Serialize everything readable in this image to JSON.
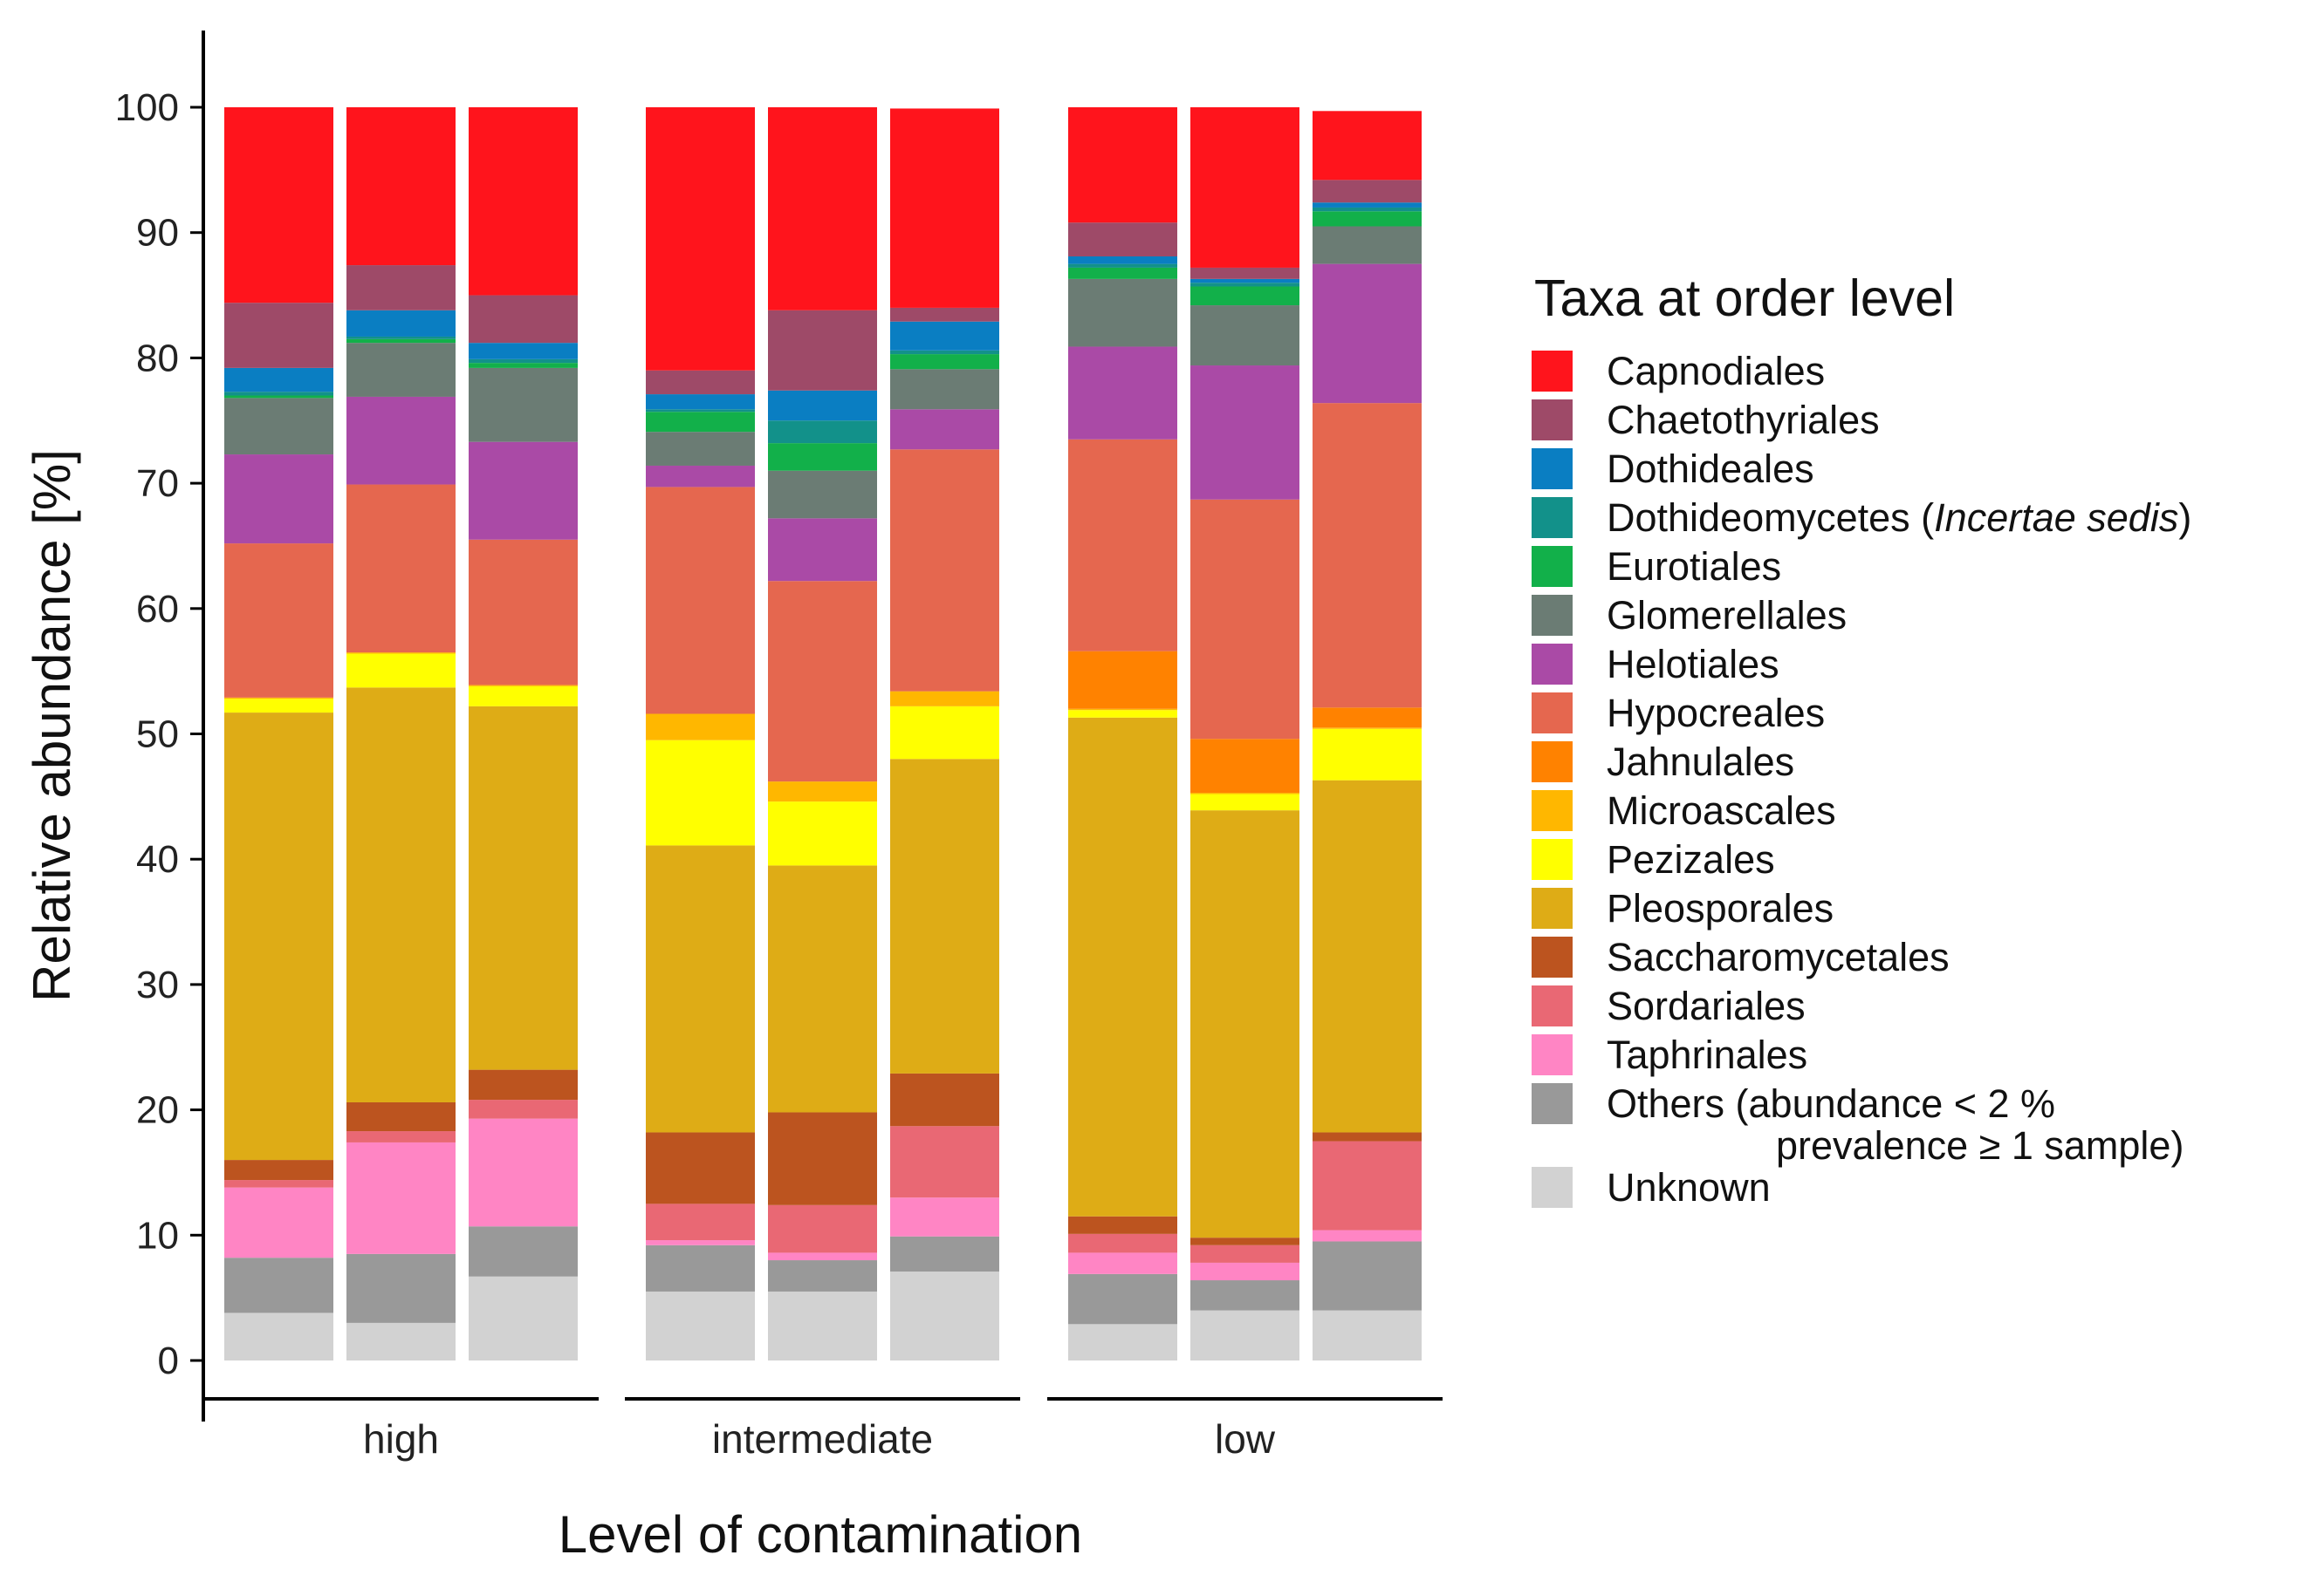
{
  "chart_data": {
    "type": "bar",
    "stacked": true,
    "xlabel": "Level of contamination",
    "ylabel": "Relative abundance [%]",
    "ylim": [
      0,
      100
    ],
    "yticks": [
      "0",
      "10",
      "20",
      "30",
      "40",
      "50",
      "60",
      "70",
      "80",
      "90",
      "100"
    ],
    "groups": [
      "high",
      "intermediate",
      "low"
    ],
    "bars_per_group": 3,
    "legend": {
      "title": "Taxa at order level",
      "placement": "right",
      "items": [
        {
          "name": "Capnodiales",
          "color": "#ff141c"
        },
        {
          "name": "Chaetothyriales",
          "color": "#9e4a68"
        },
        {
          "name": "Dothideales",
          "color": "#0a7ec2"
        },
        {
          "name": "Dothideomycetes (",
          "name_italic": "Incertae sedis",
          "name_end": ")",
          "color": "#12918a"
        },
        {
          "name": "Eurotiales",
          "color": "#12b04a"
        },
        {
          "name": "Glomerellales",
          "color": "#6b7c74"
        },
        {
          "name": "Helotiales",
          "color": "#aa4aa6"
        },
        {
          "name": "Hypocreales",
          "color": "#e5674f"
        },
        {
          "name": "Jahnulales",
          "color": "#ff8200"
        },
        {
          "name": "Microascales",
          "color": "#ffb700"
        },
        {
          "name": "Pezizales",
          "color": "#ffff00"
        },
        {
          "name": "Pleosporales",
          "color": "#deac16"
        },
        {
          "name": "Saccharomycetales",
          "color": "#bc541f"
        },
        {
          "name": "Sordariales",
          "color": "#e96874"
        },
        {
          "name": "Taphrinales",
          "color": "#ff85c4"
        },
        {
          "name": "Others (abundance < 2 %",
          "name_line2": "prevalence ≥ 1 sample)",
          "color": "#999999"
        },
        {
          "name": "Unknown",
          "color": "#d2d2d2"
        }
      ]
    },
    "stack_order_bottom_to_top": [
      "Unknown",
      "Others (abundance < 2 %",
      "Taphrinales",
      "Sordariales",
      "Saccharomycetales",
      "Pleosporales",
      "Pezizales",
      "Microascales",
      "Jahnulales",
      "Hypocreales",
      "Helotiales",
      "Glomerellales",
      "Eurotiales",
      "Dothideomycetes (",
      "Dothideales",
      "Chaetothyriales",
      "Capnodiales"
    ],
    "series_colors": [
      "#d2d2d2",
      "#999999",
      "#ff85c4",
      "#e96874",
      "#bc541f",
      "#deac16",
      "#ffff00",
      "#ffb700",
      "#ff8200",
      "#e5674f",
      "#aa4aa6",
      "#6b7c74",
      "#12b04a",
      "#12918a",
      "#0a7ec2",
      "#9e4a68",
      "#ff141c"
    ],
    "bars": [
      {
        "group": "high",
        "values": [
          3.8,
          4.4,
          5.6,
          0.6,
          1.6,
          35.7,
          1.1,
          0.1,
          0.0,
          12.3,
          7.1,
          4.5,
          0.2,
          0.3,
          1.9,
          5.2,
          15.6
        ]
      },
      {
        "group": "high",
        "values": [
          3.0,
          5.5,
          8.9,
          0.9,
          2.3,
          33.1,
          2.7,
          0.1,
          0.0,
          13.4,
          7.0,
          4.3,
          0.3,
          0.2,
          2.1,
          3.6,
          12.6
        ]
      },
      {
        "group": "high",
        "values": [
          6.7,
          4.0,
          8.6,
          1.5,
          2.4,
          29.0,
          1.6,
          0.1,
          0.0,
          11.6,
          7.8,
          5.9,
          0.4,
          0.3,
          1.3,
          3.8,
          15.0
        ]
      },
      {
        "group": "intermediate",
        "values": [
          5.5,
          3.7,
          0.4,
          2.9,
          5.7,
          22.9,
          8.4,
          2.1,
          0.0,
          18.1,
          1.7,
          2.7,
          1.6,
          0.2,
          1.2,
          1.9,
          21.0
        ]
      },
      {
        "group": "intermediate",
        "values": [
          5.5,
          2.5,
          0.6,
          3.8,
          7.4,
          19.7,
          5.1,
          1.6,
          0.0,
          16.0,
          5.0,
          3.8,
          2.2,
          1.8,
          2.4,
          6.4,
          16.2
        ]
      },
      {
        "group": "intermediate",
        "values": [
          7.1,
          2.8,
          3.1,
          5.7,
          4.2,
          25.1,
          4.2,
          1.2,
          0.0,
          19.3,
          3.2,
          3.2,
          1.2,
          0.3,
          2.3,
          1.1,
          15.9
        ]
      },
      {
        "group": "low",
        "values": [
          2.9,
          4.0,
          1.7,
          1.5,
          1.4,
          39.8,
          0.6,
          0.1,
          4.6,
          16.9,
          7.4,
          5.4,
          0.9,
          0.3,
          0.6,
          2.7,
          9.2
        ]
      },
      {
        "group": "low",
        "values": [
          4.0,
          2.4,
          1.4,
          1.4,
          0.6,
          34.1,
          1.3,
          0.1,
          4.3,
          19.1,
          10.7,
          4.8,
          1.5,
          0.3,
          0.3,
          0.9,
          12.8
        ]
      },
      {
        "group": "low",
        "values": [
          4.0,
          5.5,
          0.9,
          7.1,
          0.7,
          28.1,
          4.1,
          0.1,
          1.6,
          24.3,
          11.1,
          3.0,
          1.2,
          0.3,
          0.4,
          1.8,
          5.5
        ]
      }
    ]
  }
}
